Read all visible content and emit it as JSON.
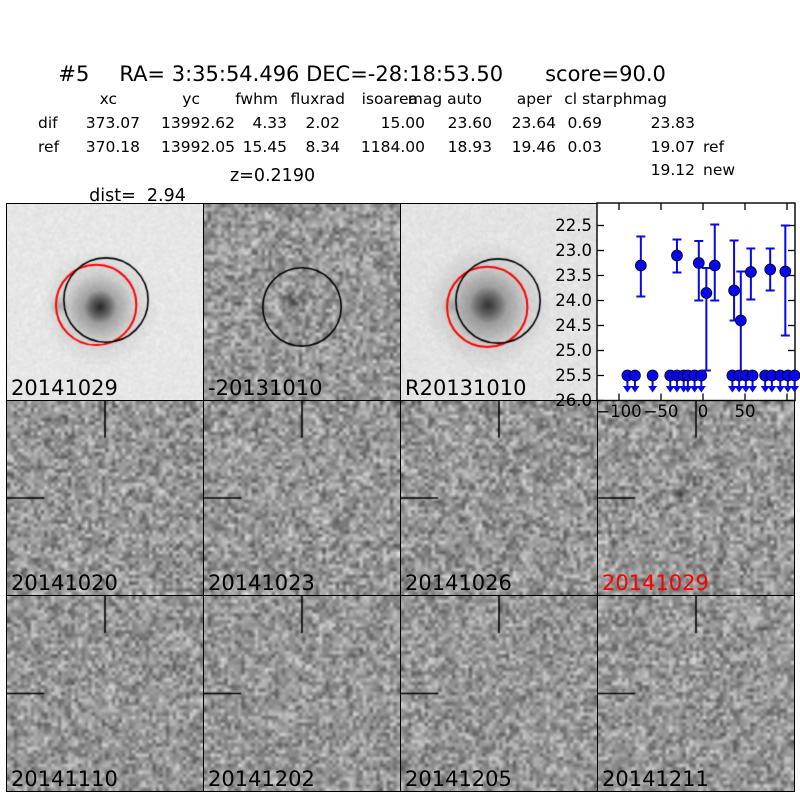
{
  "header": {
    "candidate_id": "#5",
    "coords": "RA= 3:35:54.496 DEC=-28:18:53.50",
    "score": "score=90.0"
  },
  "table": {
    "columns": [
      "xc",
      "yc",
      "fwhm",
      "fluxrad",
      "isoarea",
      "mag auto",
      "aper",
      "cl star",
      "phmag"
    ],
    "rows": [
      {
        "label": "dif",
        "values": [
          "373.07",
          "13992.62",
          "4.33",
          "2.02",
          "15.00",
          "23.60",
          "23.64",
          "0.69",
          "23.83"
        ],
        "suffix": ""
      },
      {
        "label": "ref",
        "values": [
          "370.18",
          "13992.05",
          "15.45",
          "8.34",
          "1184.00",
          "18.93",
          "19.46",
          "0.03",
          "19.07"
        ],
        "suffix": "ref"
      }
    ],
    "extra_phmag": {
      "value": "19.12",
      "suffix": "new"
    },
    "dist": "dist=  2.94",
    "z": "z=0.2190"
  },
  "panels": [
    {
      "label": "20141029",
      "label_color": "#000000",
      "kind": "new-template"
    },
    {
      "label": "-20131010",
      "label_color": "#000000",
      "kind": "subtraction-ref"
    },
    {
      "label": "R20131010",
      "label_color": "#000000",
      "kind": "reference"
    },
    {
      "label": "",
      "label_color": "#000000",
      "kind": "lightcurve"
    },
    {
      "label": "20141020",
      "label_color": "#000000",
      "kind": "difference"
    },
    {
      "label": "20141023",
      "label_color": "#000000",
      "kind": "difference"
    },
    {
      "label": "20141026",
      "label_color": "#000000",
      "kind": "difference"
    },
    {
      "label": "20141029",
      "label_color": "#ff0000",
      "kind": "difference"
    },
    {
      "label": "20141110",
      "label_color": "#000000",
      "kind": "difference"
    },
    {
      "label": "20141202",
      "label_color": "#000000",
      "kind": "difference"
    },
    {
      "label": "20141205",
      "label_color": "#000000",
      "kind": "difference"
    },
    {
      "label": "20141211",
      "label_color": "#000000",
      "kind": "difference"
    }
  ],
  "chart_data": {
    "type": "scatter",
    "title": "",
    "xlabel": "",
    "ylabel": "",
    "xlim": [
      -126,
      110
    ],
    "ylim": [
      26.02,
      22.05
    ],
    "y_axis_inverted_magnitudes": true,
    "xticks": [
      -100,
      -50,
      0,
      50,
      100
    ],
    "xtick_labels": [
      "−100",
      "−50",
      "0",
      "50",
      ""
    ],
    "yticks": [
      22.5,
      23.0,
      23.5,
      24.0,
      24.5,
      25.0,
      25.5,
      26.0
    ],
    "marker_color": "#0808e8",
    "series": [
      {
        "name": "detections",
        "marker": "circle-errorbar",
        "points": [
          {
            "x": -74,
            "mag": 23.3,
            "err_up": 0.58,
            "err_dn": 0.62
          },
          {
            "x": -31,
            "mag": 23.1,
            "err_up": 0.32,
            "err_dn": 0.34
          },
          {
            "x": -5,
            "mag": 23.25,
            "err_up": 0.44,
            "err_dn": 0.75
          },
          {
            "x": 4,
            "mag": 23.85,
            "err_up": 0.5,
            "err_dn": 1.55
          },
          {
            "x": 14,
            "mag": 23.3,
            "err_up": 0.82,
            "err_dn": 0.7
          },
          {
            "x": 37,
            "mag": 23.8,
            "err_up": 1.0,
            "err_dn": 0.6
          },
          {
            "x": 45,
            "mag": 24.4,
            "err_up": 0.98,
            "err_dn": 1.15
          },
          {
            "x": 57,
            "mag": 23.43,
            "err_up": 0.47,
            "err_dn": 0.55
          },
          {
            "x": 80,
            "mag": 23.38,
            "err_up": 0.42,
            "err_dn": 0.42
          },
          {
            "x": 98,
            "mag": 23.42,
            "err_up": 0.92,
            "err_dn": 1.28
          }
        ]
      },
      {
        "name": "upper-limits",
        "marker": "circle-down-arrow",
        "mag": 25.5,
        "x": [
          -90,
          -81,
          -60,
          -39,
          -31,
          -23,
          -18,
          -10,
          -2,
          35,
          43,
          51,
          59,
          74,
          82,
          92,
          101,
          109
        ]
      }
    ]
  }
}
